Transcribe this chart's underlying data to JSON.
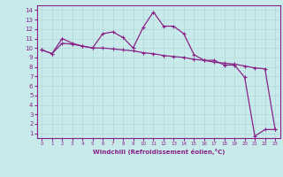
{
  "xlabel": "Windchill (Refroidissement éolien,°C)",
  "background_color": "#c8eaea",
  "grid_color": "#b0d8d8",
  "line_color": "#882288",
  "spine_color": "#882288",
  "xlim": [
    -0.5,
    23.5
  ],
  "ylim": [
    0.5,
    14.5
  ],
  "xticks": [
    0,
    1,
    2,
    3,
    4,
    5,
    6,
    7,
    8,
    9,
    10,
    11,
    12,
    13,
    14,
    15,
    16,
    17,
    18,
    19,
    20,
    21,
    22,
    23
  ],
  "yticks": [
    1,
    2,
    3,
    4,
    5,
    6,
    7,
    8,
    9,
    10,
    11,
    12,
    13,
    14
  ],
  "line1_x": [
    0,
    1,
    2,
    3,
    4,
    5,
    6,
    7,
    8,
    9,
    10,
    11,
    12,
    13,
    14,
    15,
    16,
    17,
    18,
    19,
    20,
    21,
    22,
    23
  ],
  "line1_y": [
    9.8,
    9.4,
    10.5,
    10.4,
    10.2,
    10.0,
    10.0,
    9.9,
    9.8,
    9.7,
    9.5,
    9.4,
    9.2,
    9.1,
    9.0,
    8.8,
    8.7,
    8.5,
    8.4,
    8.3,
    8.1,
    7.9,
    7.8,
    1.4
  ],
  "line2_x": [
    0,
    1,
    2,
    3,
    4,
    5,
    6,
    7,
    8,
    9,
    10,
    11,
    12,
    13,
    14,
    15,
    16,
    17,
    18,
    19,
    20,
    21,
    22,
    23
  ],
  "line2_y": [
    9.8,
    9.4,
    11.0,
    10.5,
    10.2,
    10.0,
    11.5,
    11.7,
    11.1,
    10.0,
    12.2,
    13.8,
    12.3,
    12.3,
    11.5,
    9.3,
    8.7,
    8.7,
    8.2,
    8.2,
    6.9,
    0.7,
    1.4,
    1.4
  ],
  "xlabel_fontsize": 5,
  "tick_fontsize_x": 4,
  "tick_fontsize_y": 5
}
